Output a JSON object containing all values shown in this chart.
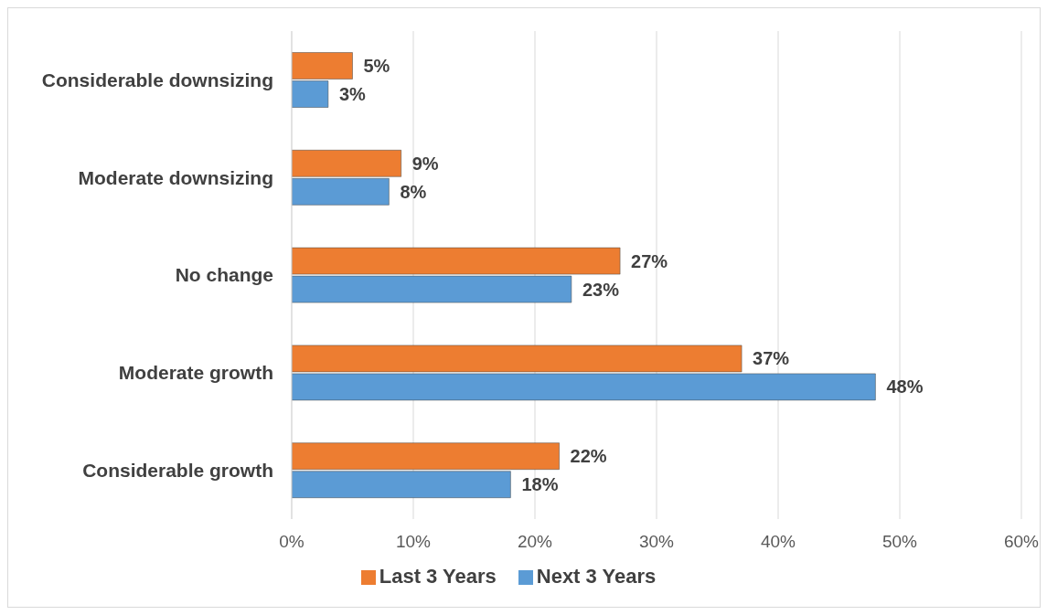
{
  "chart_data": {
    "type": "bar",
    "orientation": "horizontal",
    "categories": [
      "Considerable downsizing",
      "Moderate downsizing",
      "No change",
      "Moderate growth",
      "Considerable growth"
    ],
    "series": [
      {
        "name": "Last 3 Years",
        "color": "#ed7d31",
        "values": [
          5,
          9,
          27,
          37,
          22
        ],
        "value_labels": [
          "5%",
          "9%",
          "27%",
          "37%",
          "22%"
        ]
      },
      {
        "name": "Next 3 Years",
        "color": "#5b9bd5",
        "values": [
          3,
          8,
          23,
          48,
          18
        ],
        "value_labels": [
          "3%",
          "8%",
          "23%",
          "48%",
          "18%"
        ]
      }
    ],
    "xlim": [
      0,
      60
    ],
    "xticks": [
      {
        "value": 0,
        "label": "0%"
      },
      {
        "value": 10,
        "label": "10%"
      },
      {
        "value": 20,
        "label": "20%"
      },
      {
        "value": 30,
        "label": "30%"
      },
      {
        "value": 40,
        "label": "40%"
      },
      {
        "value": 50,
        "label": "50%"
      },
      {
        "value": 60,
        "label": "60%"
      }
    ],
    "grid": "x",
    "legend": "bottom"
  }
}
